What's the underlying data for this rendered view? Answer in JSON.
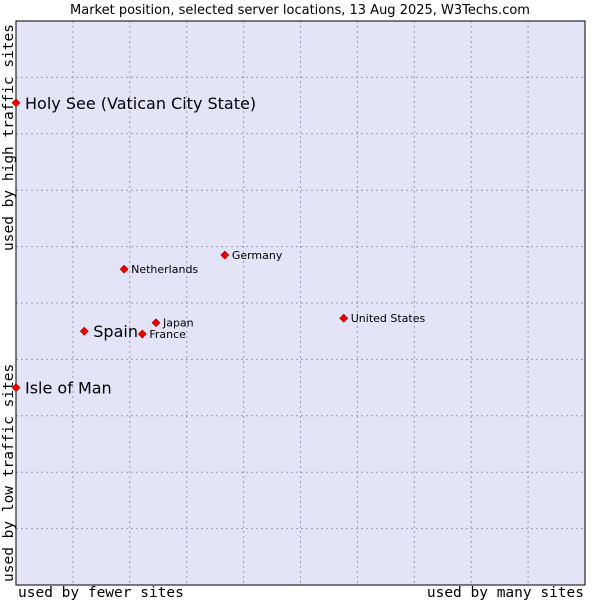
{
  "chart_data": {
    "type": "scatter",
    "title": "Market position, selected server locations, 13 Aug 2025, W3Techs.com",
    "xlabel_left": "used by fewer sites",
    "xlabel_right": "used by many sites",
    "ylabel_bottom": "used by low traffic sites",
    "ylabel_top": "used by high traffic sites",
    "xlim": [
      0,
      100
    ],
    "ylim": [
      0,
      100
    ],
    "grid": true,
    "colors": {
      "plot_background": "#e3e4f8",
      "grid": "#9999bb",
      "frame": "#000000",
      "marker": "#ee0000"
    },
    "points": [
      {
        "label": "Holy See (Vatican City State)",
        "x": 0.0,
        "y": 85.5,
        "highlight": true
      },
      {
        "label": "Isle of Man",
        "x": 0.0,
        "y": 35.0,
        "highlight": true
      },
      {
        "label": "Spain",
        "x": 12.0,
        "y": 45.0,
        "highlight": true
      },
      {
        "label": "Netherlands",
        "x": 19.0,
        "y": 56.0,
        "highlight": false
      },
      {
        "label": "Germany",
        "x": 36.7,
        "y": 58.5,
        "highlight": false
      },
      {
        "label": "Japan",
        "x": 24.6,
        "y": 46.5,
        "highlight": false
      },
      {
        "label": "France",
        "x": 22.2,
        "y": 44.5,
        "highlight": false
      },
      {
        "label": "United States",
        "x": 57.6,
        "y": 47.3,
        "highlight": false
      }
    ]
  }
}
